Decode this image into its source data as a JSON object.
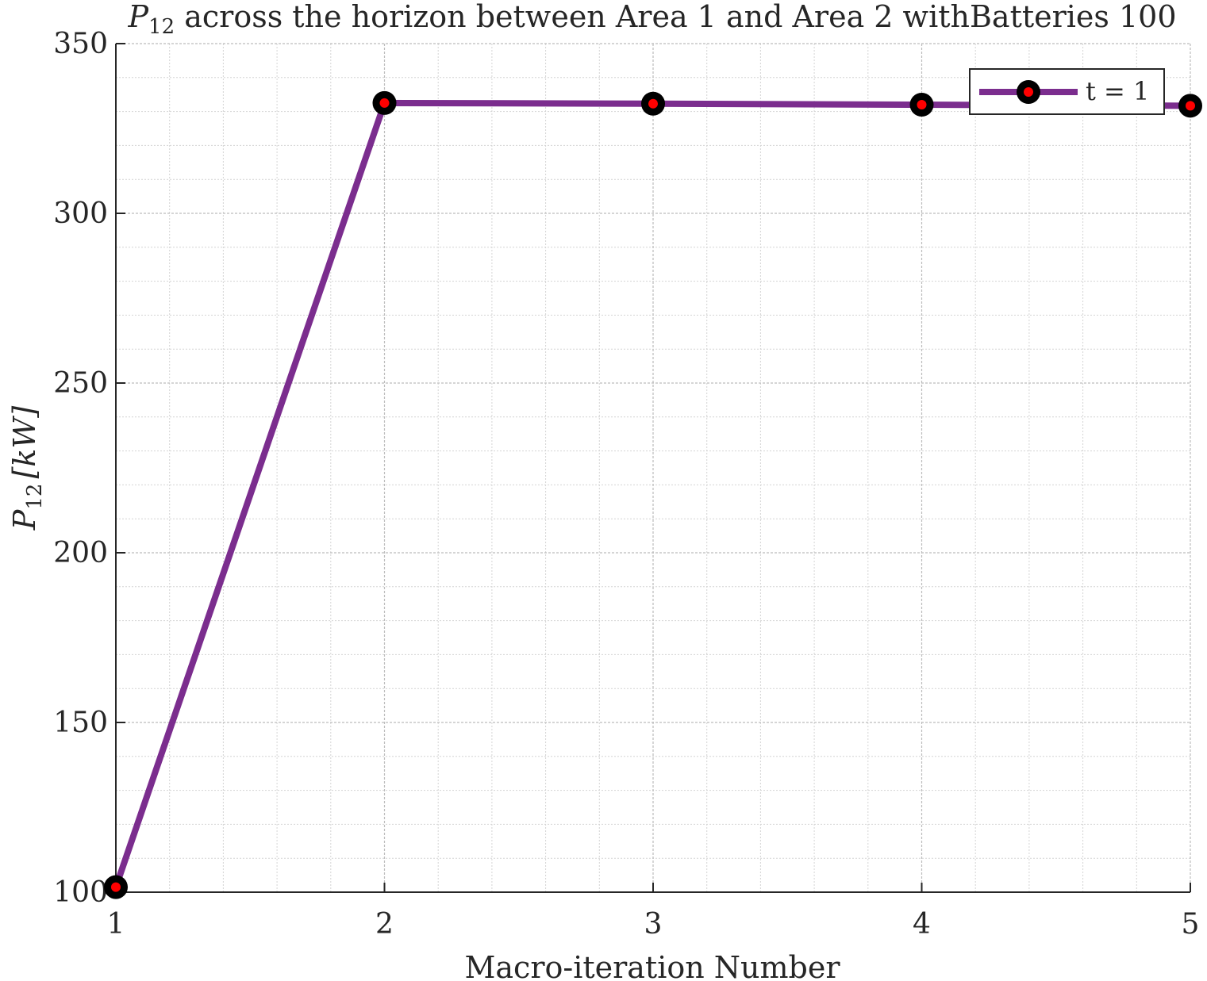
{
  "chart_data": {
    "type": "line",
    "title": {
      "symbol": "P",
      "subscript": "12",
      "text": " across the horizon between Area 1 and Area 2 withBatteries 100"
    },
    "xlabel": "Macro-iteration Number",
    "ylabel": {
      "symbol": "P",
      "subscript": "12",
      "unit": "[kW]"
    },
    "xlim": [
      1,
      5
    ],
    "ylim": [
      100,
      350
    ],
    "xticks": [
      1,
      2,
      3,
      4,
      5
    ],
    "yticks": [
      100,
      150,
      200,
      250,
      300,
      350
    ],
    "grid": true,
    "minor_grid": true,
    "legend": {
      "placement": "top-right"
    },
    "colors": {
      "line": "#7b2d8e",
      "marker_edge": "#000000",
      "marker_face": "#ff0000"
    },
    "series": [
      {
        "name": "t = 1",
        "x": [
          1,
          2,
          3,
          4,
          5
        ],
        "y": [
          101.5,
          332.5,
          332.3,
          332.0,
          331.7
        ]
      }
    ]
  }
}
